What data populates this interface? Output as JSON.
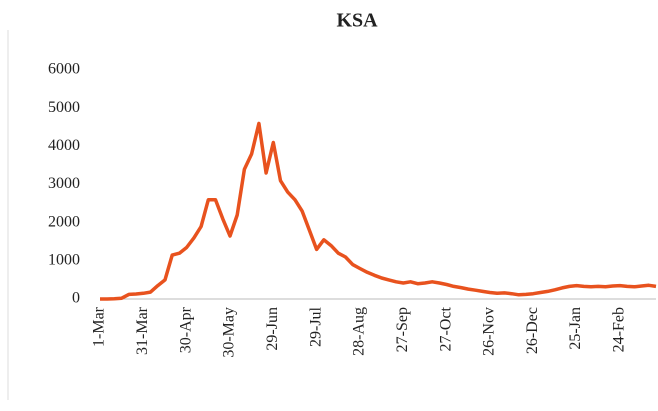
{
  "chart_data": {
    "type": "line",
    "title": "KSA",
    "categories": [
      "1-Mar",
      null,
      null,
      null,
      null,
      null,
      "31-Mar",
      null,
      null,
      null,
      null,
      null,
      "30-Apr",
      null,
      null,
      null,
      null,
      null,
      "30-May",
      null,
      null,
      null,
      null,
      null,
      "29-Jun",
      null,
      null,
      null,
      null,
      null,
      "29-Jul",
      null,
      null,
      null,
      null,
      null,
      "28-Aug",
      null,
      null,
      null,
      null,
      null,
      "27-Sep",
      null,
      null,
      null,
      null,
      null,
      "27-Oct",
      null,
      null,
      null,
      null,
      null,
      "26-Nov",
      null,
      null,
      null,
      null,
      null,
      "26-Dec",
      null,
      null,
      null,
      null,
      null,
      "25-Jan",
      null,
      null,
      null,
      null,
      null,
      "24-Feb",
      null,
      null,
      null,
      null,
      null
    ],
    "values": [
      0,
      0,
      5,
      20,
      120,
      130,
      150,
      180,
      350,
      500,
      1150,
      1200,
      1350,
      1600,
      1900,
      2600,
      2600,
      2100,
      1650,
      2200,
      3400,
      3800,
      4600,
      3300,
      4100,
      3100,
      2800,
      2600,
      2300,
      1800,
      1300,
      1550,
      1400,
      1200,
      1100,
      900,
      800,
      700,
      620,
      550,
      500,
      450,
      420,
      450,
      400,
      420,
      450,
      420,
      380,
      330,
      300,
      260,
      230,
      200,
      170,
      150,
      160,
      140,
      110,
      120,
      140,
      170,
      200,
      240,
      290,
      330,
      350,
      330,
      320,
      330,
      320,
      340,
      350,
      330,
      320,
      340,
      360,
      330
    ],
    "color": "#e8521e",
    "ylim": [
      0,
      6000
    ],
    "yticks": [
      0,
      1000,
      2000,
      3000,
      4000,
      5000,
      6000
    ],
    "grid": false
  }
}
